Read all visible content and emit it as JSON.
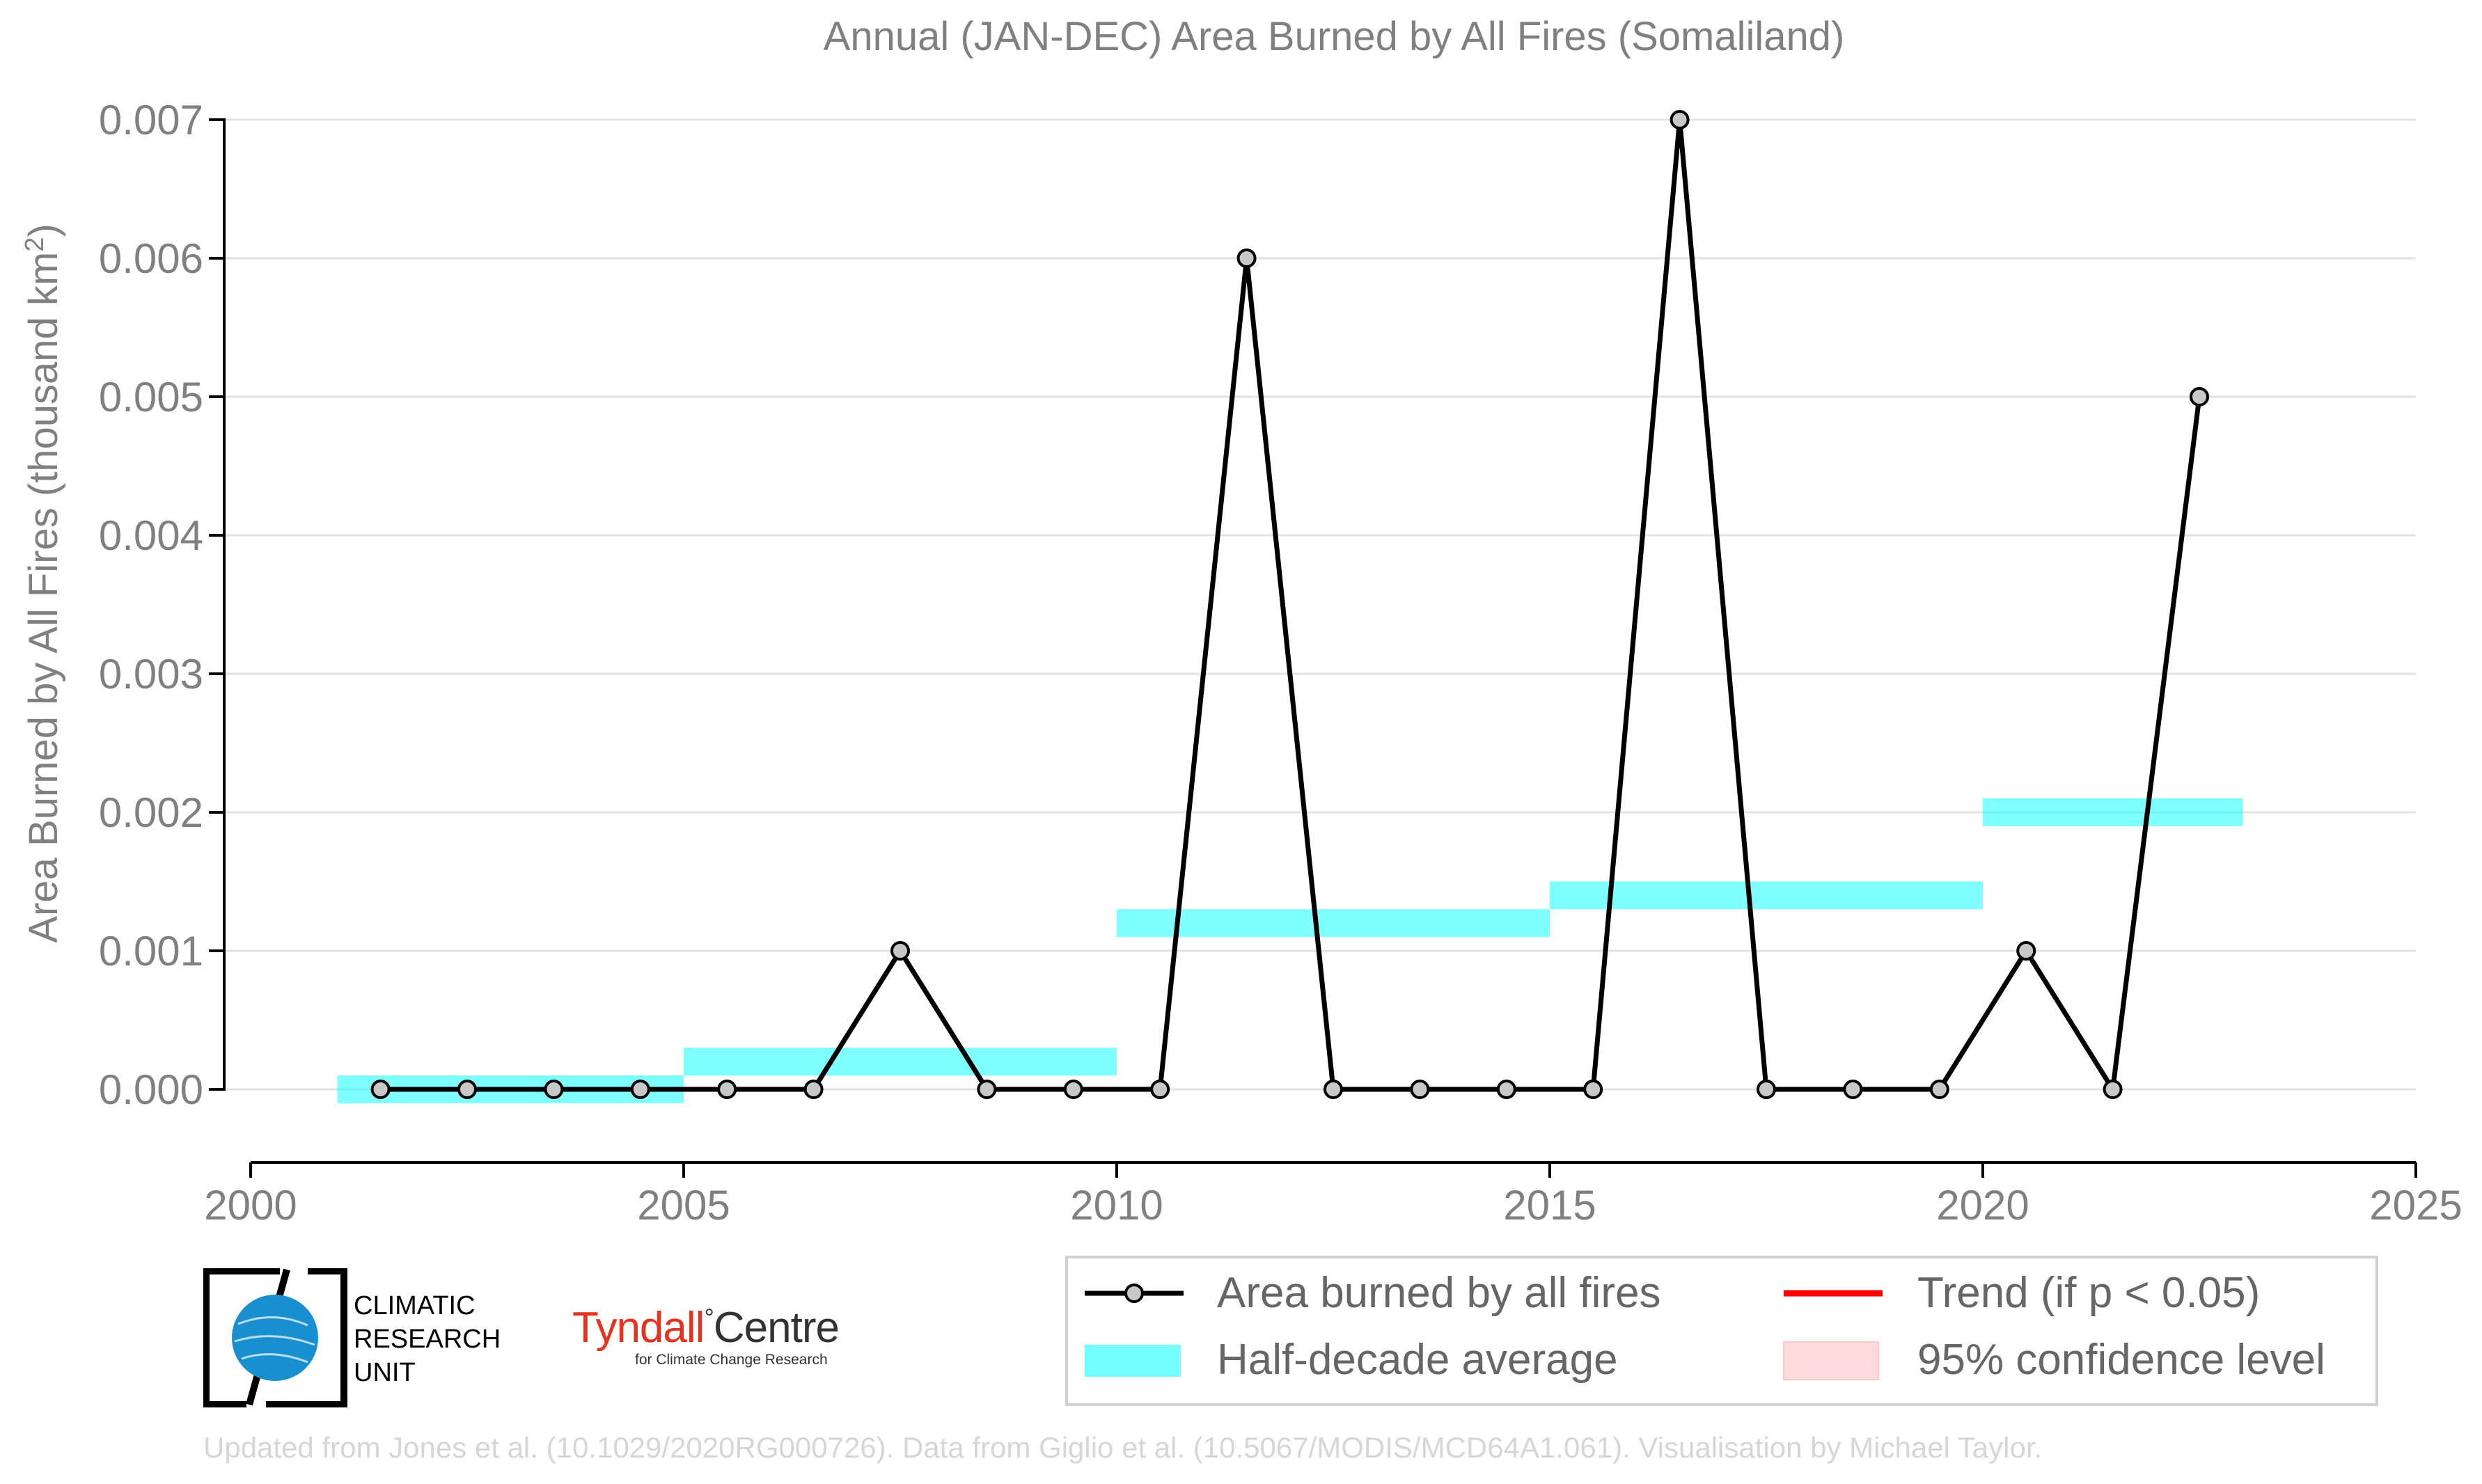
{
  "chart_data": {
    "type": "line",
    "title": "Annual (JAN-DEC) Area Burned by All Fires (Somaliland)",
    "ylabel_main": "Area Burned by All Fires (thousand km",
    "ylabel_sup": "2",
    "ylabel_end": ")",
    "xlim": [
      2000,
      2025
    ],
    "ylim": [
      -0.00052,
      0.007
    ],
    "xticks": [
      2000,
      2005,
      2010,
      2015,
      2020,
      2025
    ],
    "yticks": [
      0.0,
      0.001,
      0.002,
      0.003,
      0.004,
      0.005,
      0.006,
      0.007
    ],
    "ytick_labels": [
      "0.000",
      "0.001",
      "0.002",
      "0.003",
      "0.004",
      "0.005",
      "0.006",
      "0.007"
    ],
    "grid": "horizontal",
    "series": [
      {
        "name": "Area burned by all fires",
        "x": [
          2001.5,
          2002.5,
          2003.5,
          2004.5,
          2005.5,
          2006.5,
          2007.5,
          2008.5,
          2009.5,
          2010.5,
          2011.5,
          2012.5,
          2013.5,
          2014.5,
          2015.5,
          2016.5,
          2017.5,
          2018.5,
          2019.5,
          2020.5,
          2021.5,
          2022.5
        ],
        "y": [
          0.0,
          0.0,
          0.0,
          0.0,
          0.0,
          0.0,
          0.001,
          0.0,
          0.0,
          0.0,
          0.006,
          0.0,
          0.0,
          0.0,
          0.0,
          0.007,
          0.0,
          0.0,
          0.0,
          0.001,
          0.0,
          0.005
        ],
        "color": "#000000",
        "marker_fill": "#c8c8c8"
      },
      {
        "name": "Half-decade average",
        "segments": [
          {
            "x0": 2001,
            "x1": 2005,
            "y": 0.0
          },
          {
            "x0": 2005,
            "x1": 2010,
            "y": 0.0002
          },
          {
            "x0": 2010,
            "x1": 2015,
            "y": 0.0012
          },
          {
            "x0": 2015,
            "x1": 2020,
            "y": 0.0014
          },
          {
            "x0": 2020,
            "x1": 2023,
            "y": 0.002
          }
        ],
        "color": "#00ffff"
      }
    ],
    "legend": {
      "placement": "bottom-right",
      "entries": [
        {
          "label": "Area burned by all fires",
          "kind": "line-marker",
          "color": "#000000"
        },
        {
          "label": "Trend (if p < 0.05)",
          "kind": "line",
          "color": "#ff0000"
        },
        {
          "label": "Half-decade average",
          "kind": "band",
          "color": "#00ffff"
        },
        {
          "label": "95% confidence level",
          "kind": "fill",
          "color": "#ffcccc"
        }
      ]
    }
  },
  "logos": {
    "cru_lines": [
      "CLIMATIC",
      "RESEARCH",
      "UNIT"
    ],
    "tyndall_name": "Tyndall",
    "tyndall_degree": "°",
    "tyndall_centre": "Centre",
    "tyndall_sub": "for Climate Change Research"
  },
  "footer": "Updated from Jones et al. (10.1029/2020RG000726). Data from Giglio et al. (10.5067/MODIS/MCD64A1.061). Visualisation by Michael Taylor."
}
